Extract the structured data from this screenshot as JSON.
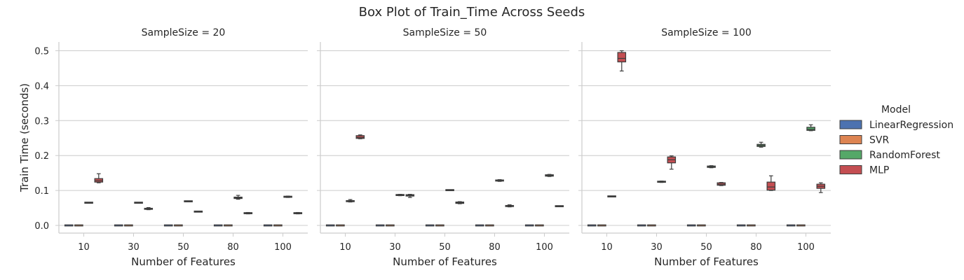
{
  "chart_data": {
    "type": "box",
    "title": "Box Plot of Train_Time Across Seeds",
    "xlabel": "Number of Features",
    "ylabel": "Train Time (seconds)",
    "ylim": [
      -0.022,
      0.525
    ],
    "yticks": [
      0.0,
      0.1,
      0.2,
      0.3,
      0.4,
      0.5
    ],
    "ytick_labels": [
      "0.0",
      "0.1",
      "0.2",
      "0.3",
      "0.4",
      "0.5"
    ],
    "categories": [
      "10",
      "30",
      "50",
      "80",
      "100"
    ],
    "legend": {
      "title": "Model",
      "placement": "right"
    },
    "series": [
      {
        "name": "LinearRegression",
        "color": "#4c72b0"
      },
      {
        "name": "SVR",
        "color": "#dd8452"
      },
      {
        "name": "RandomForest",
        "color": "#55a868"
      },
      {
        "name": "MLP",
        "color": "#c44e52"
      }
    ],
    "panels": [
      {
        "title": "SampleSize = 20",
        "groups": [
          {
            "category": "10",
            "boxes": [
              {
                "model": "RandomForest",
                "min": 0.064,
                "q1": 0.0645,
                "median": 0.065,
                "q3": 0.0655,
                "max": 0.066
              },
              {
                "model": "MLP",
                "min": 0.122,
                "q1": 0.124,
                "median": 0.128,
                "q3": 0.134,
                "max": 0.148
              }
            ]
          },
          {
            "category": "30",
            "boxes": [
              {
                "model": "RandomForest",
                "min": 0.064,
                "q1": 0.0645,
                "median": 0.065,
                "q3": 0.0655,
                "max": 0.066
              },
              {
                "model": "MLP",
                "min": 0.045,
                "q1": 0.046,
                "median": 0.047,
                "q3": 0.049,
                "max": 0.051
              }
            ]
          },
          {
            "category": "50",
            "boxes": [
              {
                "model": "RandomForest",
                "min": 0.068,
                "q1": 0.0685,
                "median": 0.069,
                "q3": 0.0695,
                "max": 0.07
              },
              {
                "model": "MLP",
                "min": 0.039,
                "q1": 0.039,
                "median": 0.0395,
                "q3": 0.04,
                "max": 0.04
              }
            ]
          },
          {
            "category": "80",
            "boxes": [
              {
                "model": "RandomForest",
                "min": 0.075,
                "q1": 0.077,
                "median": 0.079,
                "q3": 0.081,
                "max": 0.086
              },
              {
                "model": "MLP",
                "min": 0.033,
                "q1": 0.034,
                "median": 0.035,
                "q3": 0.036,
                "max": 0.037
              }
            ]
          },
          {
            "category": "100",
            "boxes": [
              {
                "model": "RandomForest",
                "min": 0.08,
                "q1": 0.081,
                "median": 0.082,
                "q3": 0.083,
                "max": 0.084
              },
              {
                "model": "MLP",
                "min": 0.033,
                "q1": 0.034,
                "median": 0.035,
                "q3": 0.036,
                "max": 0.037
              }
            ]
          }
        ]
      },
      {
        "title": "SampleSize = 50",
        "groups": [
          {
            "category": "10",
            "boxes": [
              {
                "model": "RandomForest",
                "min": 0.067,
                "q1": 0.068,
                "median": 0.069,
                "q3": 0.071,
                "max": 0.074
              },
              {
                "model": "MLP",
                "min": 0.248,
                "q1": 0.249,
                "median": 0.252,
                "q3": 0.257,
                "max": 0.259
              }
            ]
          },
          {
            "category": "30",
            "boxes": [
              {
                "model": "RandomForest",
                "min": 0.085,
                "q1": 0.086,
                "median": 0.087,
                "q3": 0.088,
                "max": 0.089
              },
              {
                "model": "MLP",
                "min": 0.08,
                "q1": 0.084,
                "median": 0.086,
                "q3": 0.088,
                "max": 0.089
              }
            ]
          },
          {
            "category": "50",
            "boxes": [
              {
                "model": "RandomForest",
                "min": 0.1,
                "q1": 0.1005,
                "median": 0.101,
                "q3": 0.1015,
                "max": 0.102
              },
              {
                "model": "MLP",
                "min": 0.062,
                "q1": 0.063,
                "median": 0.065,
                "q3": 0.067,
                "max": 0.068
              }
            ]
          },
          {
            "category": "80",
            "boxes": [
              {
                "model": "RandomForest",
                "min": 0.126,
                "q1": 0.127,
                "median": 0.128,
                "q3": 0.13,
                "max": 0.131
              },
              {
                "model": "MLP",
                "min": 0.053,
                "q1": 0.054,
                "median": 0.056,
                "q3": 0.057,
                "max": 0.059
              }
            ]
          },
          {
            "category": "100",
            "boxes": [
              {
                "model": "RandomForest",
                "min": 0.14,
                "q1": 0.141,
                "median": 0.143,
                "q3": 0.145,
                "max": 0.146
              },
              {
                "model": "MLP",
                "min": 0.054,
                "q1": 0.054,
                "median": 0.055,
                "q3": 0.056,
                "max": 0.056
              }
            ]
          }
        ]
      },
      {
        "title": "SampleSize = 100",
        "groups": [
          {
            "category": "10",
            "boxes": [
              {
                "model": "RandomForest",
                "min": 0.082,
                "q1": 0.0825,
                "median": 0.083,
                "q3": 0.0835,
                "max": 0.084
              },
              {
                "model": "MLP",
                "min": 0.442,
                "q1": 0.468,
                "median": 0.478,
                "q3": 0.495,
                "max": 0.5
              }
            ]
          },
          {
            "category": "30",
            "boxes": [
              {
                "model": "RandomForest",
                "min": 0.123,
                "q1": 0.124,
                "median": 0.125,
                "q3": 0.126,
                "max": 0.127
              },
              {
                "model": "MLP",
                "min": 0.161,
                "q1": 0.179,
                "median": 0.188,
                "q3": 0.196,
                "max": 0.199
              }
            ]
          },
          {
            "category": "50",
            "boxes": [
              {
                "model": "RandomForest",
                "min": 0.165,
                "q1": 0.166,
                "median": 0.168,
                "q3": 0.17,
                "max": 0.171
              },
              {
                "model": "MLP",
                "min": 0.114,
                "q1": 0.115,
                "median": 0.118,
                "q3": 0.122,
                "max": 0.123
              }
            ]
          },
          {
            "category": "80",
            "boxes": [
              {
                "model": "RandomForest",
                "min": 0.224,
                "q1": 0.226,
                "median": 0.229,
                "q3": 0.232,
                "max": 0.238
              },
              {
                "model": "MLP",
                "min": 0.1,
                "q1": 0.101,
                "median": 0.11,
                "q3": 0.124,
                "max": 0.142
              }
            ]
          },
          {
            "category": "100",
            "boxes": [
              {
                "model": "RandomForest",
                "min": 0.271,
                "q1": 0.272,
                "median": 0.275,
                "q3": 0.281,
                "max": 0.288
              },
              {
                "model": "MLP",
                "min": 0.094,
                "q1": 0.106,
                "median": 0.112,
                "q3": 0.118,
                "max": 0.122
              }
            ]
          }
        ]
      }
    ]
  }
}
